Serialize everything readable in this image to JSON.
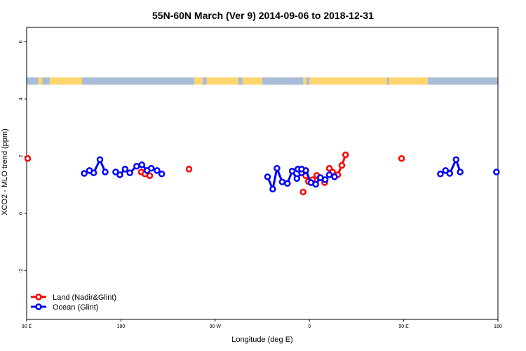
{
  "chart_data": {
    "type": "line",
    "title": "55N-60N March (Ver 9)   2014-09-06 to 2018-12-31",
    "xlabel": "Longitude (deg E)",
    "ylabel": "XCO2 - MLO trend (ppm)",
    "xlim": [
      90,
      540
    ],
    "ylim": [
      -3.7,
      6.5
    ],
    "x_ticks": [
      {
        "value": 90,
        "label": "90 E"
      },
      {
        "value": 180,
        "label": "180"
      },
      {
        "value": 270,
        "label": "90 W"
      },
      {
        "value": 360,
        "label": "0"
      },
      {
        "value": 450,
        "label": "90 E"
      },
      {
        "value": 540,
        "label": "180"
      }
    ],
    "y_ticks": [
      {
        "value": -2,
        "label": "-2"
      },
      {
        "value": 0,
        "label": "0"
      },
      {
        "value": 2,
        "label": "2"
      },
      {
        "value": 4,
        "label": "4"
      },
      {
        "value": 6,
        "label": "6"
      }
    ],
    "map_band": {
      "ymin": 4.5,
      "ymax": 4.75,
      "land_color": "#ffd56e",
      "ocean_color": "#a7bcd9"
    },
    "legend_position": "bottom-left",
    "series": [
      {
        "name": "Land (Nadir&Glint)",
        "color": "#ff0000",
        "segments": [
          [
            [
              91,
              1.92
            ]
          ],
          [
            [
              199.5,
              1.45
            ],
            [
              203,
              1.38
            ],
            [
              207.5,
              1.32
            ]
          ],
          [
            [
              245,
              1.55
            ]
          ],
          [
            [
              354,
              0.75
            ]
          ],
          [
            [
              356.5,
              1.32
            ],
            [
              359,
              1.12
            ],
            [
              363,
              1.18
            ],
            [
              367,
              1.33
            ],
            [
              370,
              1.25
            ],
            [
              374.5,
              1.08
            ]
          ],
          [
            [
              379,
              1.58
            ],
            [
              382,
              1.45
            ],
            [
              387,
              1.35
            ],
            [
              391,
              1.68
            ],
            [
              394.5,
              2.05
            ]
          ],
          [
            [
              448,
              1.92
            ]
          ]
        ]
      },
      {
        "name": "Ocean (Glint)",
        "color": "#0000ff",
        "segments": [
          [
            [
              145,
              1.4
            ],
            [
              150,
              1.5
            ],
            [
              154,
              1.42
            ],
            [
              160,
              1.88
            ],
            [
              165,
              1.45
            ]
          ],
          [
            [
              175,
              1.45
            ],
            [
              179,
              1.35
            ],
            [
              184,
              1.55
            ],
            [
              188.5,
              1.42
            ],
            [
              195,
              1.65
            ],
            [
              200,
              1.7
            ],
            [
              205,
              1.5
            ],
            [
              209,
              1.58
            ],
            [
              214.5,
              1.5
            ],
            [
              219,
              1.38
            ]
          ],
          [
            [
              320,
              1.28
            ],
            [
              325,
              0.85
            ],
            [
              329,
              1.58
            ],
            [
              334,
              1.1
            ],
            [
              339,
              1.05
            ],
            [
              343.5,
              1.48
            ],
            [
              348,
              1.22
            ],
            [
              352.5,
              1.42
            ],
            [
              356.5,
              1.5
            ],
            [
              361.5,
              1.08
            ],
            [
              366,
              1.02
            ],
            [
              370.5,
              1.25
            ],
            [
              375,
              1.18
            ],
            [
              379,
              1.35
            ],
            [
              384,
              1.28
            ]
          ],
          [
            [
              349,
              1.55
            ],
            [
              352.5,
              1.55
            ]
          ],
          [
            [
              485,
              1.38
            ],
            [
              490,
              1.5
            ],
            [
              494,
              1.4
            ],
            [
              500,
              1.88
            ],
            [
              504,
              1.45
            ]
          ],
          [
            [
              538.5,
              1.45
            ]
          ]
        ]
      }
    ]
  }
}
